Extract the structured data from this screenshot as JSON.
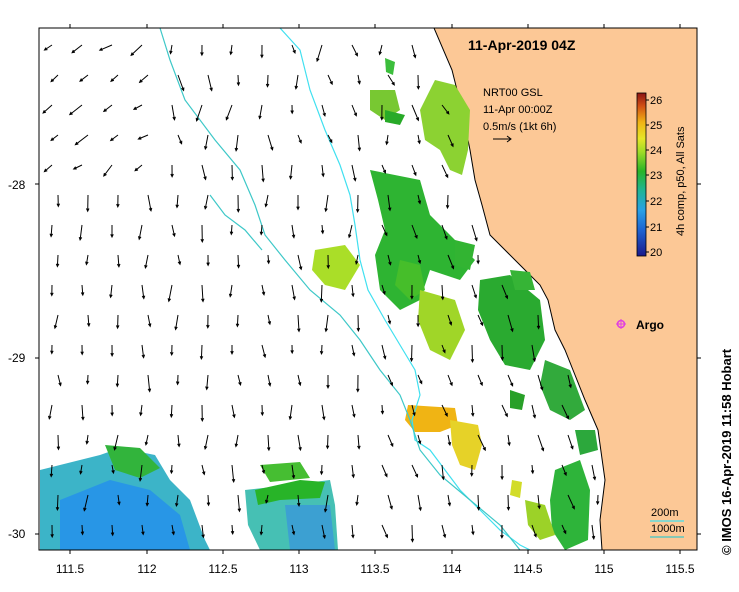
{
  "title": "11-Apr-2019 04Z",
  "current_legend": {
    "line1": "NRT00 GSL",
    "line2": "11-Apr 00:00Z",
    "line3": "0.5m/s (1kt 6h)"
  },
  "colorbar": {
    "label": "4h comp, p50, All Sats",
    "ticks": [
      "20",
      "21",
      "22",
      "23",
      "24",
      "25",
      "26"
    ],
    "min": 20,
    "max": 26
  },
  "argo": {
    "label": "Argo",
    "color": "#e040e0"
  },
  "depth_legend": {
    "label1": "200m",
    "label2": "1000m"
  },
  "credit": "© IMOS 16-Apr-2019 11:58 Hobart",
  "x_axis": {
    "ticks": [
      "111.5",
      "112",
      "112.5",
      "113",
      "113.5",
      "114",
      "114.5",
      "115",
      "115.5"
    ]
  },
  "y_axis": {
    "ticks": [
      "-28",
      "-29",
      "-30"
    ]
  },
  "colors": {
    "land": "#fcc896",
    "isobath_200": "#40e0f0",
    "isobath_1000": "#3ec8c8"
  },
  "chart_data": {
    "type": "map",
    "x_range": [
      111.3,
      115.6
    ],
    "y_range": [
      -30.1,
      -27.15
    ],
    "x_ticks": [
      111.5,
      112,
      112.5,
      113,
      113.5,
      114,
      114.5,
      115,
      115.5
    ],
    "y_ticks": [
      -28,
      -29,
      -30
    ],
    "argo_position": [
      115.1,
      -28.83
    ]
  }
}
